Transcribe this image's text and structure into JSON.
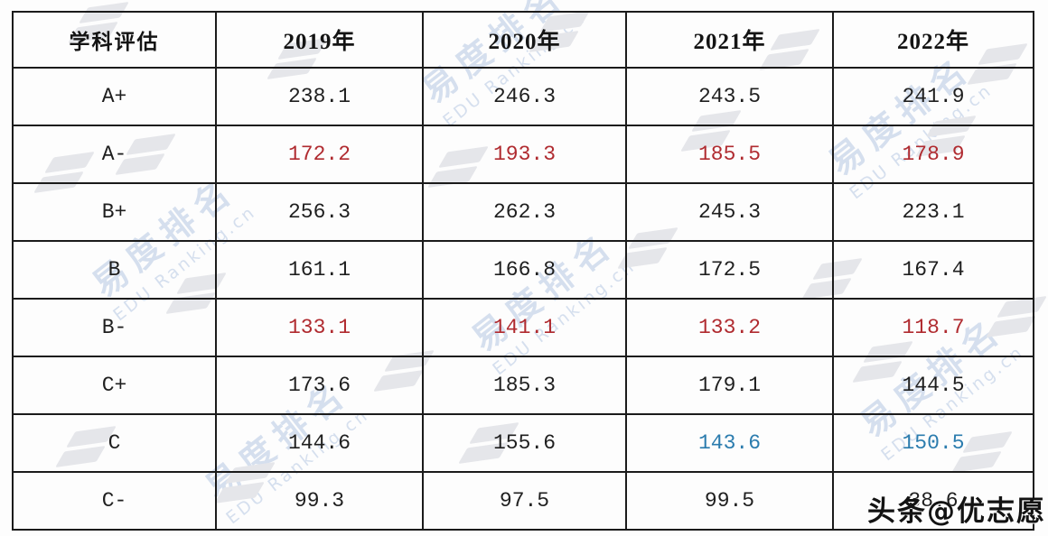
{
  "table": {
    "header": [
      "学科评估",
      "2019年",
      "2020年",
      "2021年",
      "2022年"
    ],
    "rows": [
      {
        "label": "A+",
        "values": [
          "238.1",
          "246.3",
          "243.5",
          "241.9"
        ],
        "value_colors": [
          "black",
          "black",
          "black",
          "black"
        ]
      },
      {
        "label": "A-",
        "values": [
          "172.2",
          "193.3",
          "185.5",
          "178.9"
        ],
        "value_colors": [
          "red",
          "red",
          "red",
          "red"
        ]
      },
      {
        "label": "B+",
        "values": [
          "256.3",
          "262.3",
          "245.3",
          "223.1"
        ],
        "value_colors": [
          "black",
          "black",
          "black",
          "black"
        ]
      },
      {
        "label": "B",
        "values": [
          "161.1",
          "166.8",
          "172.5",
          "167.4"
        ],
        "value_colors": [
          "black",
          "black",
          "black",
          "black"
        ]
      },
      {
        "label": "B-",
        "values": [
          "133.1",
          "141.1",
          "133.2",
          "118.7"
        ],
        "value_colors": [
          "red",
          "red",
          "red",
          "red"
        ]
      },
      {
        "label": "C+",
        "values": [
          "173.6",
          "185.3",
          "179.1",
          "144.5"
        ],
        "value_colors": [
          "black",
          "black",
          "black",
          "black"
        ]
      },
      {
        "label": "C",
        "values": [
          "144.6",
          "155.6",
          "143.6",
          "150.5"
        ],
        "value_colors": [
          "black",
          "black",
          "blue",
          "blue"
        ]
      },
      {
        "label": "C-",
        "values": [
          "99.3",
          "97.5",
          "99.5",
          "38.6"
        ],
        "value_colors": [
          "black",
          "black",
          "black",
          "black"
        ]
      }
    ]
  },
  "colors": {
    "black": "#1f1f1f",
    "red": "#b02b30",
    "blue": "#2b7cae",
    "border": "#1b1b1b",
    "watermark_blue": "#9eb4d8",
    "watermark_gray": "#e5e6ea"
  },
  "watermark": {
    "brand_cn": "易度排名",
    "brand_en": "EDU Ranking.cn",
    "overlay_badge": "头条@优志愿"
  },
  "chart_data": {
    "type": "table",
    "columns": [
      "学科评估",
      "2019年",
      "2020年",
      "2021年",
      "2022年"
    ],
    "rows": [
      [
        "A+",
        238.1,
        246.3,
        243.5,
        241.9
      ],
      [
        "A-",
        172.2,
        193.3,
        185.5,
        178.9
      ],
      [
        "B+",
        256.3,
        262.3,
        245.3,
        223.1
      ],
      [
        "B",
        161.1,
        166.8,
        172.5,
        167.4
      ],
      [
        "B-",
        133.1,
        141.1,
        133.2,
        118.7
      ],
      [
        "C+",
        173.6,
        185.3,
        179.1,
        144.5
      ],
      [
        "C",
        144.6,
        155.6,
        143.6,
        150.5
      ],
      [
        "C-",
        99.3,
        97.5,
        99.5,
        38.6
      ]
    ],
    "notes": "red cells mark A-/B- rows, blue cells mark C-row 2021/2022 values"
  }
}
